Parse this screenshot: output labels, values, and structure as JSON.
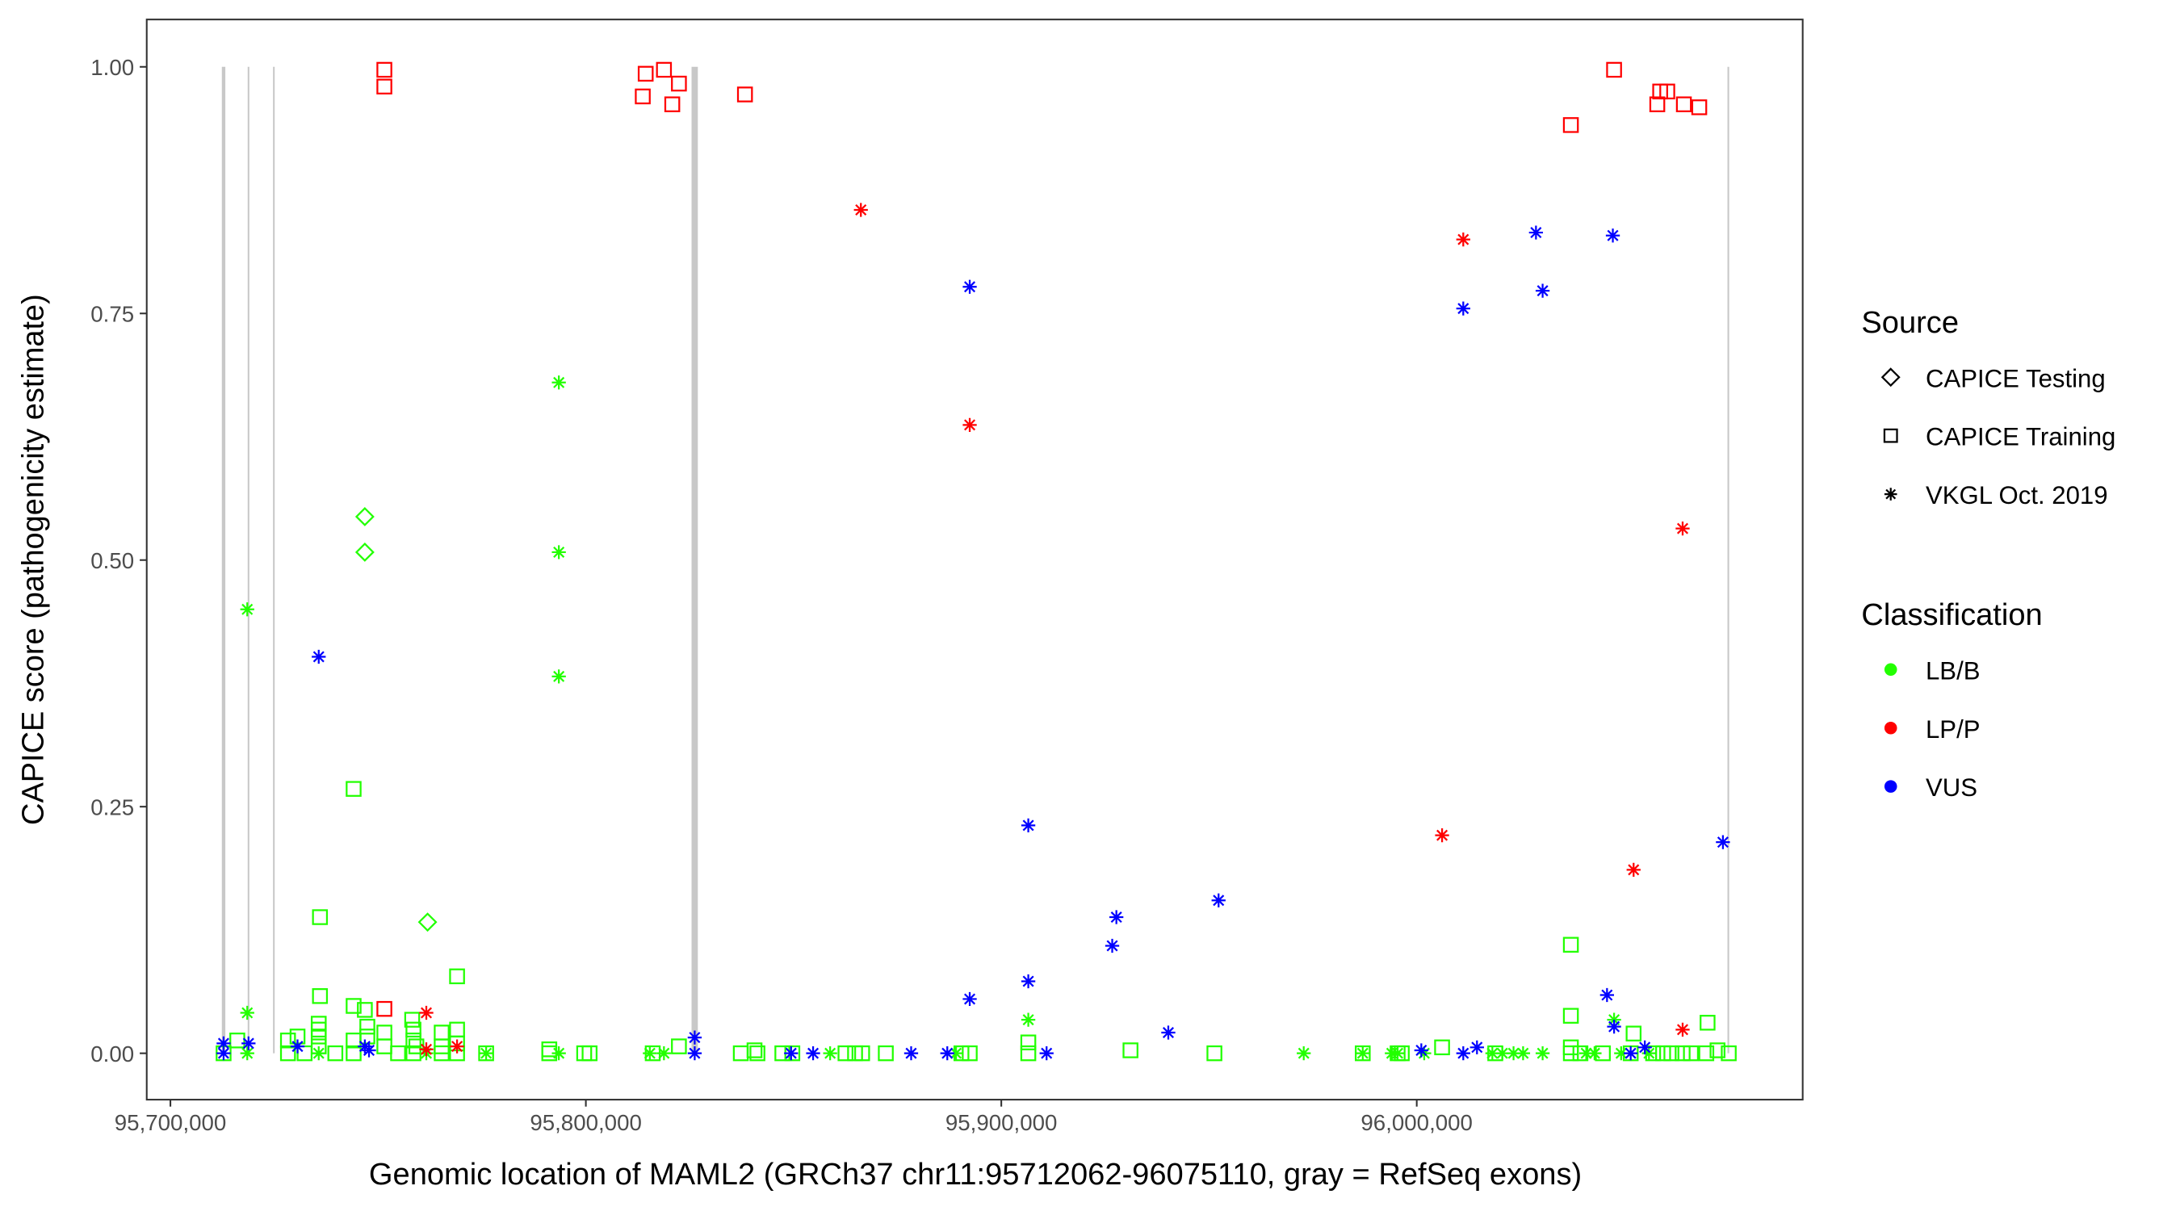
{
  "chart_data": {
    "type": "scatter",
    "xlabel": "Genomic location of MAML2 (GRCh37 chr11:95712062-96075110, gray = RefSeq exons)",
    "ylabel": "CAPICE score (pathogenicity estimate)",
    "xlim": [
      95694300,
      96092900
    ],
    "ylim": [
      -0.047,
      1.048
    ],
    "grid": false,
    "x_ticks": [
      95700000,
      95800000,
      95900000,
      96000000
    ],
    "x_tick_labels": [
      "95,700,000",
      "95,800,000",
      "95,900,000",
      "96,000,000"
    ],
    "y_ticks": [
      0,
      0.25,
      0.5,
      0.75,
      1.0
    ],
    "y_tick_labels": [
      "0.00",
      "0.25",
      "0.50",
      "0.75",
      "1.00"
    ],
    "exons": [
      95712800,
      95718800,
      95724900,
      95826200,
      96075000
    ],
    "exon_color": "#c8c8c8",
    "legend_placement": "right",
    "legend": {
      "source_title": "Source",
      "source": [
        {
          "label": "CAPICE Testing",
          "shape": "diamond"
        },
        {
          "label": "CAPICE Training",
          "shape": "square"
        },
        {
          "label": "VKGL Oct. 2019",
          "shape": "asterisk"
        }
      ],
      "class_title": "Classification",
      "classes": [
        {
          "label": "LB/B",
          "color": "#22ff00"
        },
        {
          "label": "LP/P",
          "color": "#ff0000"
        },
        {
          "label": "VUS",
          "color": "#0000ff"
        }
      ]
    },
    "series": [
      {
        "source": "CAPICE Training",
        "class": "LB/B",
        "points": [
          [
            95744100,
            0.268
          ],
          [
            95736000,
            0.138
          ],
          [
            95736000,
            0.058
          ],
          [
            95744100,
            0.048
          ],
          [
            95746800,
            0.044
          ],
          [
            95769000,
            0.078
          ],
          [
            96037100,
            0.11
          ],
          [
            96037100,
            0.038
          ],
          [
            96070000,
            0.031
          ],
          [
            96052200,
            0.02
          ],
          [
            95716100,
            0.013
          ],
          [
            95712800,
            0
          ],
          [
            95728300,
            0.013
          ],
          [
            95730600,
            0.017
          ],
          [
            95735700,
            0.03
          ],
          [
            95735700,
            0.024
          ],
          [
            95735700,
            0.017
          ],
          [
            95735700,
            0.007
          ],
          [
            95744100,
            0.013
          ],
          [
            95747400,
            0.027
          ],
          [
            95747400,
            0.017
          ],
          [
            95751500,
            0.021
          ],
          [
            95751500,
            0.007
          ],
          [
            95758200,
            0.034
          ],
          [
            95758500,
            0.024
          ],
          [
            95758500,
            0.013
          ],
          [
            95759200,
            0.007
          ],
          [
            95765300,
            0.021
          ],
          [
            95769000,
            0.024
          ],
          [
            95769000,
            0.01
          ],
          [
            95765300,
            0.007
          ],
          [
            95728300,
            0
          ],
          [
            95732300,
            0
          ],
          [
            95739700,
            0
          ],
          [
            95744100,
            0
          ],
          [
            95754800,
            0
          ],
          [
            95758500,
            0
          ],
          [
            95765300,
            0
          ],
          [
            95769000,
            0
          ],
          [
            95776000,
            0
          ],
          [
            95791200,
            0.004
          ],
          [
            95791200,
            0
          ],
          [
            95799600,
            0
          ],
          [
            95800900,
            0
          ],
          [
            95816100,
            0
          ],
          [
            95822400,
            0.007
          ],
          [
            95837300,
            0
          ],
          [
            95840600,
            0.003
          ],
          [
            95841300,
            0
          ],
          [
            95847300,
            0
          ],
          [
            95849700,
            0
          ],
          [
            95862500,
            0
          ],
          [
            95864800,
            0
          ],
          [
            95866500,
            0
          ],
          [
            95872200,
            0
          ],
          [
            95890400,
            0
          ],
          [
            95892400,
            0
          ],
          [
            95906500,
            0.011
          ],
          [
            95906500,
            0
          ],
          [
            95931100,
            0.003
          ],
          [
            95951300,
            0
          ],
          [
            95987000,
            0
          ],
          [
            95995400,
            0
          ],
          [
            95996400,
            0
          ],
          [
            96006100,
            0.006
          ],
          [
            96018900,
            0
          ],
          [
            96037100,
            0.006
          ],
          [
            96037100,
            0
          ],
          [
            96039400,
            0
          ],
          [
            96044800,
            0
          ],
          [
            96051500,
            0
          ],
          [
            96056900,
            0
          ],
          [
            96059300,
            0
          ],
          [
            96061300,
            0
          ],
          [
            96064000,
            0
          ],
          [
            96066000,
            0
          ],
          [
            96069700,
            0
          ],
          [
            96072400,
            0.003
          ],
          [
            96075100,
            0
          ]
        ]
      },
      {
        "source": "CAPICE Training",
        "class": "LP/P",
        "points": [
          [
            95751500,
            0.997
          ],
          [
            95751500,
            0.98
          ],
          [
            95813700,
            0.97
          ],
          [
            95814400,
            0.993
          ],
          [
            95818800,
            0.997
          ],
          [
            95820800,
            0.962
          ],
          [
            95822400,
            0.983
          ],
          [
            95838300,
            0.972
          ],
          [
            96037100,
            0.941
          ],
          [
            96047500,
            0.997
          ],
          [
            96057900,
            0.962
          ],
          [
            96058600,
            0.975
          ],
          [
            96060300,
            0.975
          ],
          [
            96064300,
            0.962
          ],
          [
            96068000,
            0.959
          ],
          [
            95751500,
            0.045
          ]
        ]
      },
      {
        "source": "CAPICE Testing",
        "class": "LB/B",
        "points": [
          [
            95746800,
            0.544
          ],
          [
            95746800,
            0.508
          ],
          [
            95761900,
            0.133
          ]
        ]
      },
      {
        "source": "VKGL Oct. 2019",
        "class": "LB/B",
        "points": [
          [
            95718500,
            0.45
          ],
          [
            95793500,
            0.68
          ],
          [
            95793500,
            0.508
          ],
          [
            95793500,
            0.382
          ],
          [
            95718500,
            0.041
          ],
          [
            95906500,
            0.034
          ],
          [
            96047500,
            0.034
          ],
          [
            95718500,
            0
          ],
          [
            95735700,
            0
          ],
          [
            95761600,
            0
          ],
          [
            95776000,
            0
          ],
          [
            95793500,
            0
          ],
          [
            95815400,
            0
          ],
          [
            95818800,
            0
          ],
          [
            95858800,
            0
          ],
          [
            95889100,
            0
          ],
          [
            95972800,
            0
          ],
          [
            95987000,
            0
          ],
          [
            95994000,
            0
          ],
          [
            95995400,
            0
          ],
          [
            96001800,
            0
          ],
          [
            96018200,
            0
          ],
          [
            96020600,
            0
          ],
          [
            96023300,
            0
          ],
          [
            96025600,
            0
          ],
          [
            96030300,
            0
          ],
          [
            96040800,
            0
          ],
          [
            96042800,
            0
          ],
          [
            96049200,
            0
          ],
          [
            96055900,
            0
          ]
        ]
      },
      {
        "source": "VKGL Oct. 2019",
        "class": "LP/P",
        "points": [
          [
            95866200,
            0.855
          ],
          [
            95892400,
            0.637
          ],
          [
            96011200,
            0.825
          ],
          [
            96064000,
            0.532
          ],
          [
            96006100,
            0.221
          ],
          [
            96052200,
            0.186
          ],
          [
            96064000,
            0.024
          ],
          [
            95761600,
            0.041
          ],
          [
            95761600,
            0.004
          ],
          [
            95769000,
            0.007
          ]
        ]
      },
      {
        "source": "VKGL Oct. 2019",
        "class": "VUS",
        "points": [
          [
            95892400,
            0.777
          ],
          [
            96011200,
            0.755
          ],
          [
            96028700,
            0.832
          ],
          [
            96030300,
            0.773
          ],
          [
            96047200,
            0.829
          ],
          [
            95906500,
            0.231
          ],
          [
            95927700,
            0.138
          ],
          [
            95926700,
            0.109
          ],
          [
            95952300,
            0.155
          ],
          [
            95940200,
            0.021
          ],
          [
            95906500,
            0.073
          ],
          [
            95892400,
            0.055
          ],
          [
            96045800,
            0.059
          ],
          [
            96047500,
            0.027
          ],
          [
            96073700,
            0.214
          ],
          [
            95735700,
            0.402
          ],
          [
            95712800,
            0.01
          ],
          [
            95712800,
            0
          ],
          [
            95718800,
            0.01
          ],
          [
            95730600,
            0.007
          ],
          [
            95746800,
            0.007
          ],
          [
            95747800,
            0.003
          ],
          [
            95826200,
            0.016
          ],
          [
            95826200,
            0
          ],
          [
            95849400,
            0
          ],
          [
            95854700,
            0
          ],
          [
            95878300,
            0
          ],
          [
            95887000,
            0
          ],
          [
            95910900,
            0
          ],
          [
            96001100,
            0.003
          ],
          [
            96011200,
            0
          ],
          [
            96014500,
            0.006
          ],
          [
            96051500,
            0
          ],
          [
            96054900,
            0.006
          ]
        ]
      }
    ]
  }
}
